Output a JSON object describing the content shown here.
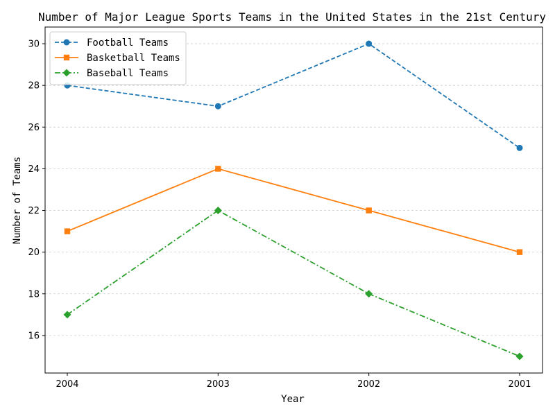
{
  "chart_data": {
    "type": "line",
    "title": "Number of Major League Sports Teams in the United States in the 21st Century",
    "xlabel": "Year",
    "ylabel": "Number of Teams",
    "categories": [
      "2004",
      "2003",
      "2002",
      "2001"
    ],
    "ylim": [
      14.2,
      30.8
    ],
    "yticks": [
      16,
      18,
      20,
      22,
      24,
      26,
      28,
      30
    ],
    "grid": true,
    "legend_position": "top-left",
    "series": [
      {
        "name": "Football Teams",
        "values": [
          28,
          27,
          30,
          25
        ],
        "color": "#1f77b4",
        "marker": "circle",
        "linestyle": "dashed"
      },
      {
        "name": "Basketball Teams",
        "values": [
          21,
          24,
          22,
          20
        ],
        "color": "#ff7f0e",
        "marker": "square",
        "linestyle": "solid"
      },
      {
        "name": "Baseball Teams",
        "values": [
          17,
          22,
          18,
          15
        ],
        "color": "#2ca02c",
        "marker": "diamond",
        "linestyle": "dashdot"
      }
    ]
  }
}
